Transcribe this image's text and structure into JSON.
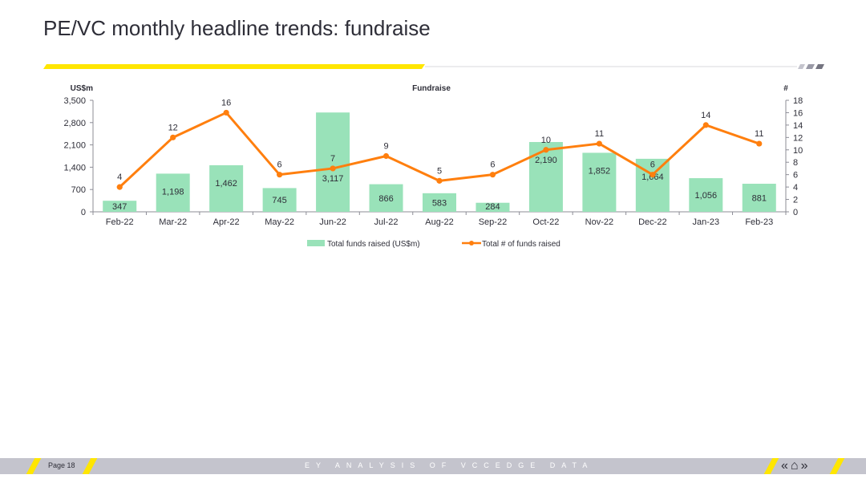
{
  "page": {
    "title": "PE/VC monthly headline trends: fundraise",
    "footer_page": "Page 18",
    "footer_caption": "EY ANALYSIS OF VCCEDGE DATA",
    "nav": {
      "prev_icon": "«",
      "home_icon": "⌂",
      "next_icon": "»"
    }
  },
  "colors": {
    "bar": "#99e2b9",
    "line": "#ff7f0e",
    "accent": "#ffe600",
    "text": "#2e2e38"
  },
  "chart_data": {
    "type": "bar",
    "title": "Fundraise",
    "ylabel_left": "US$m",
    "ylabel_right": "#",
    "categories": [
      "Feb-22",
      "Mar-22",
      "Apr-22",
      "May-22",
      "Jun-22",
      "Jul-22",
      "Aug-22",
      "Sep-22",
      "Oct-22",
      "Nov-22",
      "Dec-22",
      "Jan-23",
      "Feb-23"
    ],
    "ylim_left": [
      0,
      3500
    ],
    "yticks_left": [
      0,
      700,
      1400,
      2100,
      2800,
      3500
    ],
    "ytick_labels_left": [
      "0",
      "700",
      "1,400",
      "2,100",
      "2,800",
      "3,500"
    ],
    "ylim_right": [
      0,
      18
    ],
    "yticks_right": [
      0,
      2,
      4,
      6,
      8,
      10,
      12,
      14,
      16,
      18
    ],
    "ytick_labels_right": [
      "0",
      "2",
      "4",
      "6",
      "8",
      "10",
      "12",
      "14",
      "16",
      "18"
    ],
    "legend_position": "bottom",
    "grid": false,
    "series": [
      {
        "name": "Total funds raised (US$m)",
        "type": "bar",
        "axis": "left",
        "values": [
          347,
          1198,
          1462,
          745,
          3117,
          866,
          583,
          284,
          2190,
          1852,
          1664,
          1056,
          881
        ],
        "labels": [
          "347",
          "1,198",
          "1,462",
          "745",
          "3,117",
          "866",
          "583",
          "284",
          "2,190",
          "1,852",
          "1,664",
          "1,056",
          "881"
        ]
      },
      {
        "name": "Total # of funds raised",
        "type": "line",
        "axis": "right",
        "values": [
          4,
          12,
          16,
          6,
          7,
          9,
          5,
          6,
          10,
          11,
          6,
          14,
          11
        ],
        "labels": [
          "4",
          "12",
          "16",
          "6",
          "7",
          "9",
          "5",
          "6",
          "10",
          "11",
          "6",
          "14",
          "11"
        ]
      }
    ]
  }
}
